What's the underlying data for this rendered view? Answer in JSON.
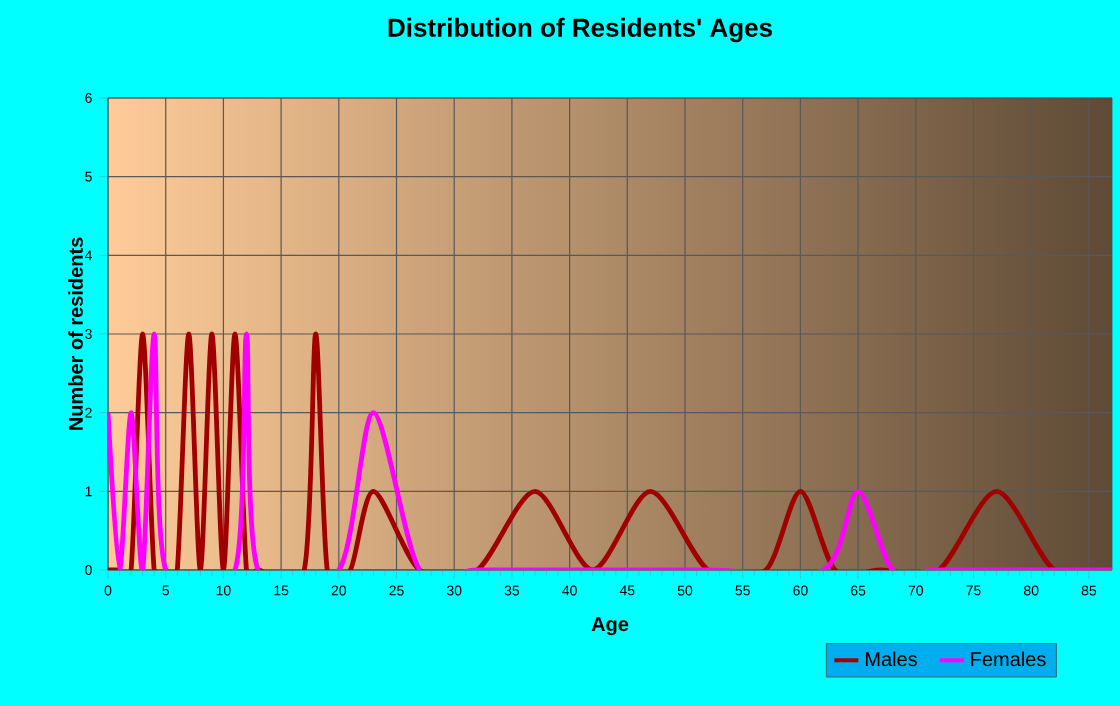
{
  "chart_data": {
    "type": "line",
    "title": "Distribution of Residents' Ages",
    "xlabel": "Age",
    "ylabel": "Number of residents",
    "xlim": [
      0,
      87
    ],
    "xticks": [
      0,
      5,
      10,
      15,
      20,
      25,
      30,
      35,
      40,
      45,
      50,
      55,
      60,
      65,
      70,
      75,
      80,
      85
    ],
    "ylim": [
      0,
      6
    ],
    "yticks": [
      0,
      1,
      2,
      3,
      4,
      5,
      6
    ],
    "grid": true,
    "legend": "bottom right",
    "marker": "none",
    "line_style": "solid",
    "series": [
      {
        "name": "Males",
        "color": "#a00000",
        "x": [
          0,
          1,
          2,
          3,
          4,
          5,
          6,
          7,
          8,
          9,
          10,
          11,
          12,
          13,
          17,
          18,
          19,
          21,
          23,
          27,
          32,
          37,
          42,
          47,
          52,
          57,
          60,
          63,
          67,
          72,
          77,
          82,
          87
        ],
        "values": [
          0,
          0,
          0,
          3,
          0,
          0,
          0,
          3,
          0,
          3,
          0,
          3,
          0,
          0,
          0,
          3,
          0,
          0,
          1,
          0,
          0,
          1,
          0,
          1,
          0,
          0,
          1,
          0,
          0,
          0,
          1,
          0,
          0
        ]
      },
      {
        "name": "Females",
        "color": "#ff00ff",
        "x": [
          0,
          1,
          2,
          3,
          4,
          5,
          11,
          12,
          13,
          20,
          23,
          27,
          32,
          42,
          52,
          62,
          65,
          68,
          72,
          82,
          87
        ],
        "values": [
          2,
          0,
          2,
          0,
          3,
          0,
          0,
          3,
          0,
          0,
          2,
          0,
          0,
          0,
          0,
          0,
          1,
          0,
          0,
          0,
          0
        ]
      }
    ]
  }
}
